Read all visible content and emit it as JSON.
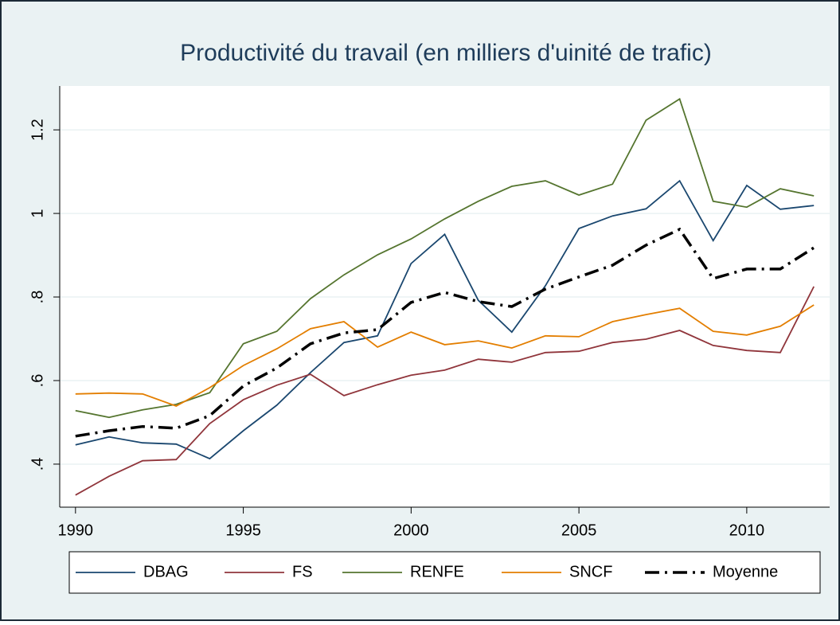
{
  "chart_data": {
    "type": "line",
    "title": "Productivité du travail (en milliers d'uinité de trafic)",
    "x": [
      1990,
      1991,
      1992,
      1993,
      1994,
      1995,
      1996,
      1997,
      1998,
      1999,
      2000,
      2001,
      2002,
      2003,
      2004,
      2005,
      2006,
      2007,
      2008,
      2009,
      2010,
      2011,
      2012
    ],
    "series": [
      {
        "name": "DBAG",
        "color": "#1a476f",
        "style": "solid",
        "values": [
          0.446,
          0.465,
          0.451,
          0.448,
          0.413,
          0.48,
          0.541,
          0.619,
          0.691,
          0.707,
          0.88,
          0.95,
          0.792,
          0.716,
          0.827,
          0.964,
          0.994,
          1.011,
          1.078,
          0.935,
          1.067,
          1.01,
          1.019
        ]
      },
      {
        "name": "FS",
        "color": "#90353b",
        "style": "solid",
        "values": [
          0.326,
          0.371,
          0.408,
          0.411,
          0.497,
          0.554,
          0.589,
          0.615,
          0.564,
          0.59,
          0.613,
          0.625,
          0.651,
          0.644,
          0.667,
          0.67,
          0.691,
          0.699,
          0.72,
          0.684,
          0.672,
          0.667,
          0.825
        ]
      },
      {
        "name": "RENFE",
        "color": "#55752f",
        "style": "solid",
        "values": [
          0.528,
          0.512,
          0.53,
          0.543,
          0.571,
          0.688,
          0.718,
          0.796,
          0.853,
          0.901,
          0.939,
          0.987,
          1.029,
          1.065,
          1.078,
          1.044,
          1.07,
          1.223,
          1.274,
          1.029,
          1.015,
          1.059,
          1.042
        ]
      },
      {
        "name": "SNCF",
        "color": "#e37e00",
        "style": "solid",
        "values": [
          0.568,
          0.57,
          0.568,
          0.539,
          0.583,
          0.636,
          0.676,
          0.724,
          0.741,
          0.68,
          0.716,
          0.686,
          0.695,
          0.678,
          0.707,
          0.705,
          0.741,
          0.758,
          0.773,
          0.718,
          0.709,
          0.73,
          0.781
        ]
      },
      {
        "name": "Moyenne",
        "color": "#000000",
        "style": "dashdot",
        "values": [
          0.467,
          0.48,
          0.49,
          0.486,
          0.516,
          0.587,
          0.63,
          0.688,
          0.714,
          0.722,
          0.787,
          0.811,
          0.789,
          0.777,
          0.819,
          0.848,
          0.876,
          0.924,
          0.962,
          0.844,
          0.867,
          0.867,
          0.918
        ]
      }
    ],
    "xlim": [
      1989.53,
      2012.47
    ],
    "xticks": [
      1990,
      1995,
      2000,
      2005,
      2010
    ],
    "ylim": [
      0.297,
      1.305
    ],
    "yticks": [
      {
        "value": 0.4,
        "label": ".4"
      },
      {
        "value": 0.6,
        "label": ".6"
      },
      {
        "value": 0.8,
        "label": ".8"
      },
      1,
      1.2
    ],
    "grid": true,
    "legend": "bottom"
  }
}
